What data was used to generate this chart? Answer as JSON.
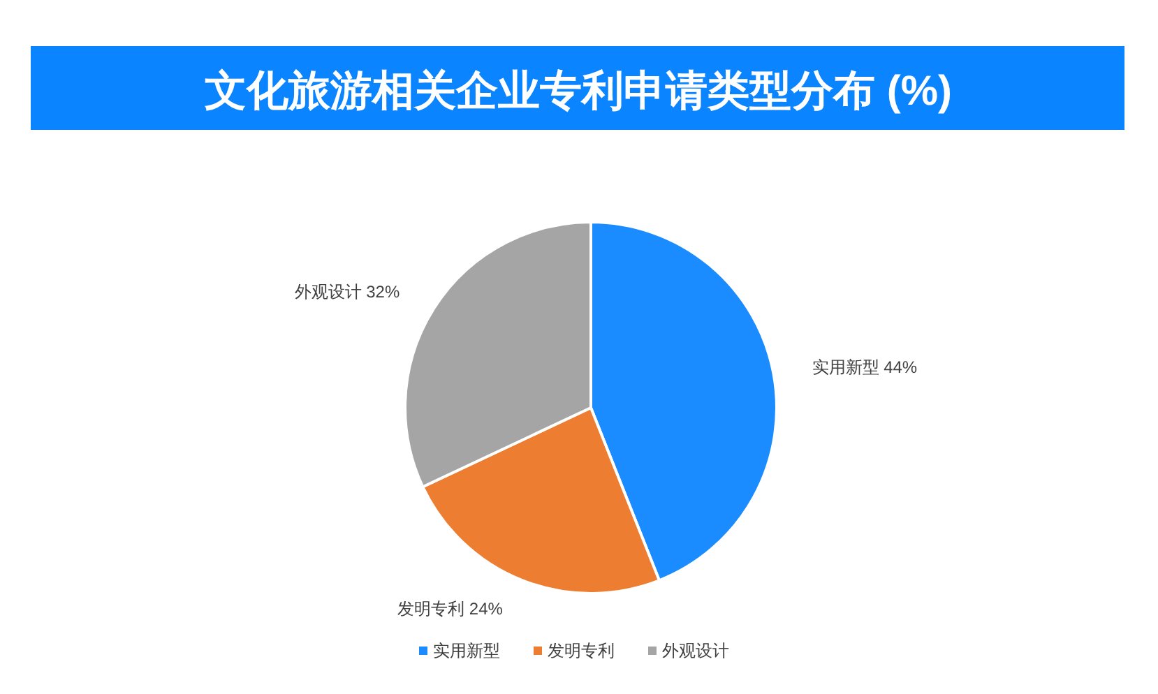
{
  "chart_data": {
    "type": "pie",
    "title": "文化旅游相关企业专利申请类型分布 (%)",
    "categories": [
      "实用新型",
      "发明专利",
      "外观设计"
    ],
    "values": [
      44,
      24,
      32
    ],
    "colors": [
      "#1a8cff",
      "#ed7d31",
      "#a5a5a5"
    ],
    "value_labels": [
      "44%",
      "24%",
      "32%"
    ],
    "legend": "bottom"
  }
}
